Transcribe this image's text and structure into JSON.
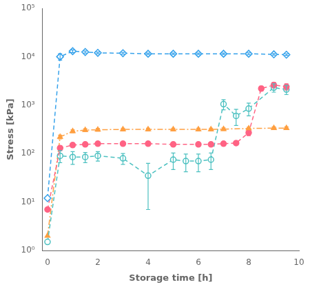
{
  "chart_data": {
    "type": "line",
    "xlabel": "Storage time [h]",
    "ylabel": "Stress [kPa]",
    "xlim": [
      -0.2,
      10
    ],
    "ylim": [
      1,
      100000
    ],
    "xticks": [
      0,
      2,
      4,
      6,
      8,
      10
    ],
    "yticks": [
      {
        "value": 1,
        "label": "10⁰"
      },
      {
        "value": 10,
        "label": "10¹"
      },
      {
        "value": 100,
        "label": "10²"
      },
      {
        "value": 1000,
        "label": "10³"
      },
      {
        "value": 10000,
        "label": "10⁴"
      },
      {
        "value": 100000,
        "label": "10⁵"
      }
    ],
    "log": "y",
    "grid": false,
    "series": [
      {
        "marker": "open_diamond",
        "line_style": "dashed",
        "x": [
          0.0,
          0.5,
          1.0,
          1.5,
          2.0,
          3.0,
          4.0,
          5.0,
          6.0,
          7.0,
          8.0,
          9.0,
          9.5
        ],
        "values": [
          12,
          10000,
          13000,
          12500,
          12000,
          11800,
          11500,
          11500,
          11500,
          11500,
          11500,
          11200,
          11000
        ],
        "error_lo": [
          0,
          1500,
          800,
          600,
          500,
          500,
          400,
          400,
          400,
          400,
          500,
          400,
          400
        ],
        "error_hi": [
          0,
          1500,
          800,
          600,
          500,
          500,
          400,
          400,
          400,
          400,
          500,
          400,
          400
        ]
      },
      {
        "marker": "filled_circle",
        "line_style": "dashed",
        "x": [
          0.0,
          0.5,
          1.0,
          1.5,
          2.0,
          3.0,
          4.0,
          5.0,
          6.0,
          6.5,
          7.0,
          7.5,
          8.0,
          8.5,
          9.0,
          9.5
        ],
        "values": [
          7,
          130,
          150,
          155,
          160,
          160,
          160,
          155,
          155,
          155,
          160,
          165,
          270,
          2200,
          2600,
          2400
        ],
        "error_lo": [
          0,
          15,
          12,
          12,
          12,
          12,
          12,
          12,
          12,
          12,
          12,
          12,
          35,
          250,
          350,
          350
        ],
        "error_hi": [
          0,
          15,
          12,
          12,
          12,
          12,
          12,
          12,
          12,
          12,
          12,
          12,
          35,
          250,
          350,
          350
        ]
      },
      {
        "marker": "open_circle",
        "line_style": "dashed",
        "x": [
          0.0,
          0.5,
          1.0,
          1.5,
          2.0,
          3.0,
          4.0,
          5.0,
          5.5,
          6.0,
          6.5,
          7.0,
          7.5,
          8.0,
          9.0,
          9.5
        ],
        "values": [
          1.5,
          90,
          85,
          85,
          90,
          80,
          35,
          75,
          70,
          70,
          75,
          1050,
          600,
          850,
          2300,
          2100
        ],
        "error_lo": [
          0,
          25,
          25,
          20,
          20,
          20,
          28,
          28,
          28,
          28,
          28,
          250,
          220,
          250,
          450,
          450
        ],
        "error_hi": [
          0,
          25,
          25,
          20,
          20,
          20,
          28,
          28,
          28,
          28,
          28,
          250,
          220,
          250,
          450,
          450
        ]
      },
      {
        "marker": "filled_triangle",
        "line_style": "dash-dot",
        "x": [
          0.0,
          0.5,
          1.0,
          1.5,
          2.0,
          3.0,
          4.0,
          5.0,
          6.0,
          6.5,
          7.0,
          8.0,
          9.0,
          9.5
        ],
        "values": [
          2,
          220,
          290,
          305,
          310,
          315,
          315,
          315,
          315,
          315,
          320,
          330,
          335,
          335
        ],
        "error_lo": [
          0,
          20,
          20,
          20,
          20,
          20,
          20,
          20,
          20,
          20,
          20,
          20,
          20,
          20
        ],
        "error_hi": [
          0,
          20,
          20,
          20,
          20,
          20,
          20,
          20,
          20,
          20,
          20,
          20,
          20,
          20
        ]
      }
    ]
  }
}
